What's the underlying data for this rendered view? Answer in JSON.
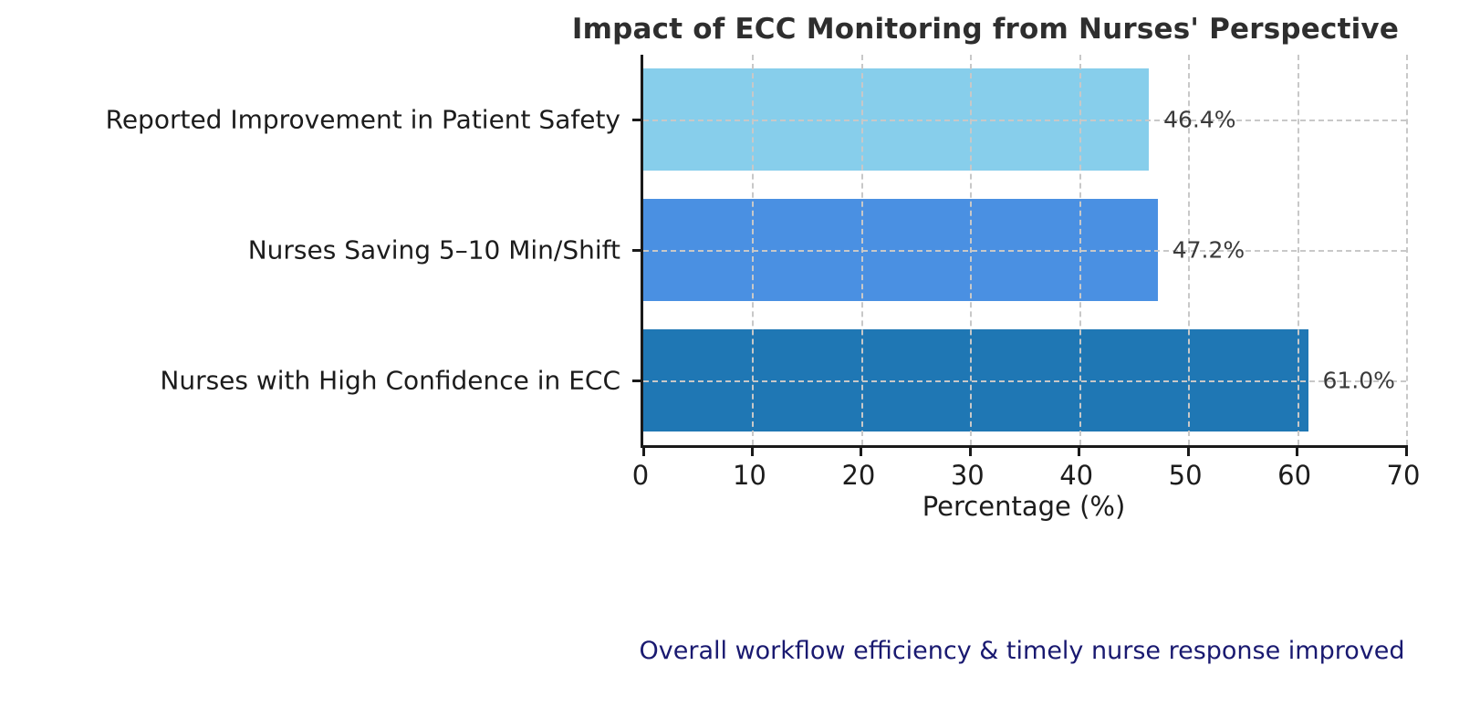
{
  "chart_data": {
    "type": "bar",
    "orientation": "horizontal",
    "title": "Impact of ECC Monitoring from Nurses' Perspective",
    "categories": [
      "Reported Improvement in Patient Safety",
      "Nurses Saving 5–10 Min/Shift",
      "Nurses with High Confidence in ECC"
    ],
    "values": [
      46.4,
      47.2,
      61.0
    ],
    "value_labels": [
      "46.4%",
      "47.2%",
      "61.0%"
    ],
    "bar_colors": [
      "#87CEEB",
      "#4A90E2",
      "#1F77B4"
    ],
    "xlabel": "Percentage (%)",
    "ylabel": "",
    "xlim": [
      0,
      70
    ],
    "xticks": [
      0,
      10,
      20,
      30,
      40,
      50,
      60,
      70
    ],
    "grid": "dashed",
    "grid_color": "#c8c8c8",
    "legend_position": "none"
  },
  "annotation": {
    "text": "Overall workflow efficiency & timely nurse response improved",
    "color": "#191970"
  },
  "styles": {
    "title_color": "#2e2e2e",
    "label_color": "#1c1c1c",
    "value_label_color": "#3a3a3a",
    "axis_color": "#1a1a1a",
    "background": "#ffffff"
  }
}
